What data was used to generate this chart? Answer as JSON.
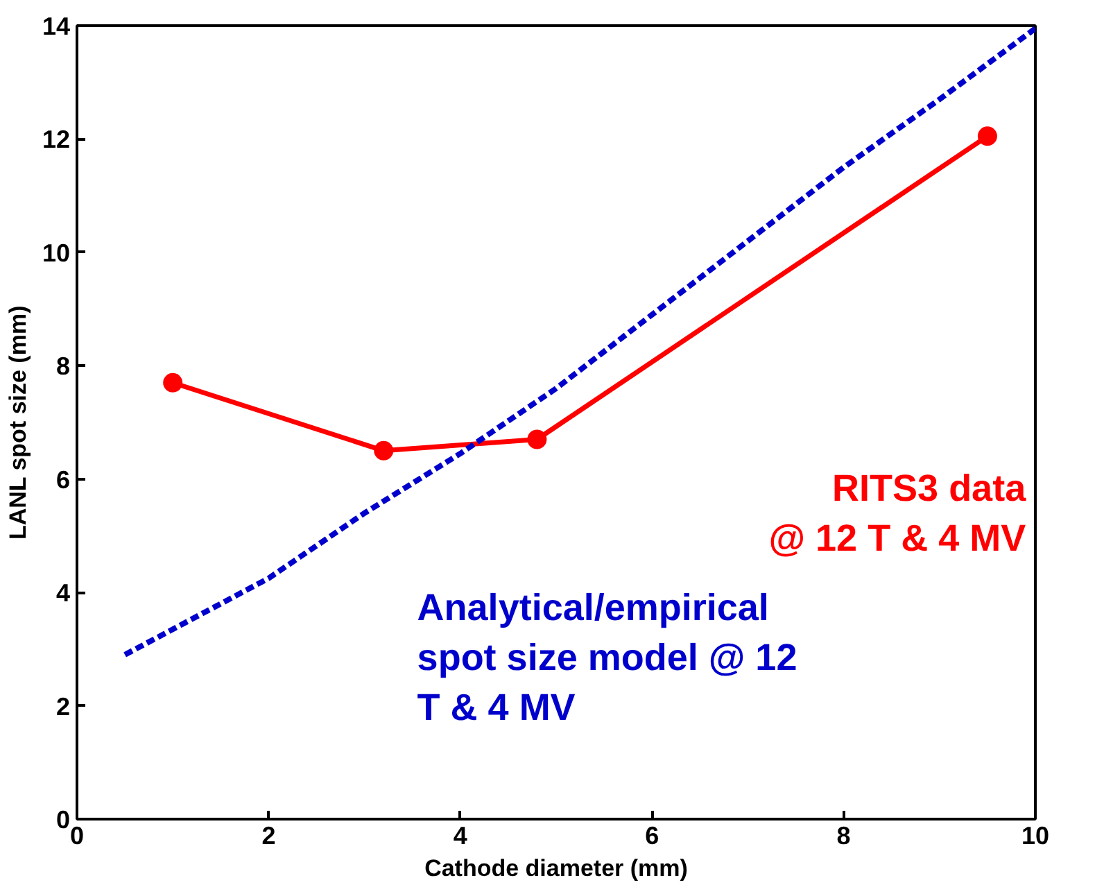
{
  "chart_data": {
    "type": "line",
    "xlabel": "Cathode diameter (mm)",
    "ylabel": "LANL spot size (mm)",
    "xlim": [
      0,
      10
    ],
    "ylim": [
      0,
      14
    ],
    "xticks": [
      0,
      2,
      4,
      6,
      8,
      10
    ],
    "yticks": [
      0,
      2,
      4,
      6,
      8,
      10,
      12,
      14
    ],
    "grid": false,
    "series": [
      {
        "name": "RITS3 data\n@ 12 T & 4 MV",
        "color": "#ff0000",
        "marker": "circle",
        "line_style": "solid",
        "x": [
          1,
          3.2,
          4.8,
          9.5
        ],
        "values": [
          7.7,
          6.5,
          6.7,
          12.05
        ]
      },
      {
        "name": "Analytical/empirical\nspot size model @ 12\nT & 4 MV",
        "color": "#0000cc",
        "marker": "none",
        "line_style": "dashed",
        "x": [
          0.5,
          1,
          2,
          3,
          4,
          5,
          6,
          7,
          8,
          9,
          10
        ],
        "values": [
          2.9,
          3.35,
          4.25,
          5.4,
          6.45,
          7.6,
          8.9,
          10.2,
          11.5,
          12.7,
          13.95
        ]
      }
    ]
  }
}
